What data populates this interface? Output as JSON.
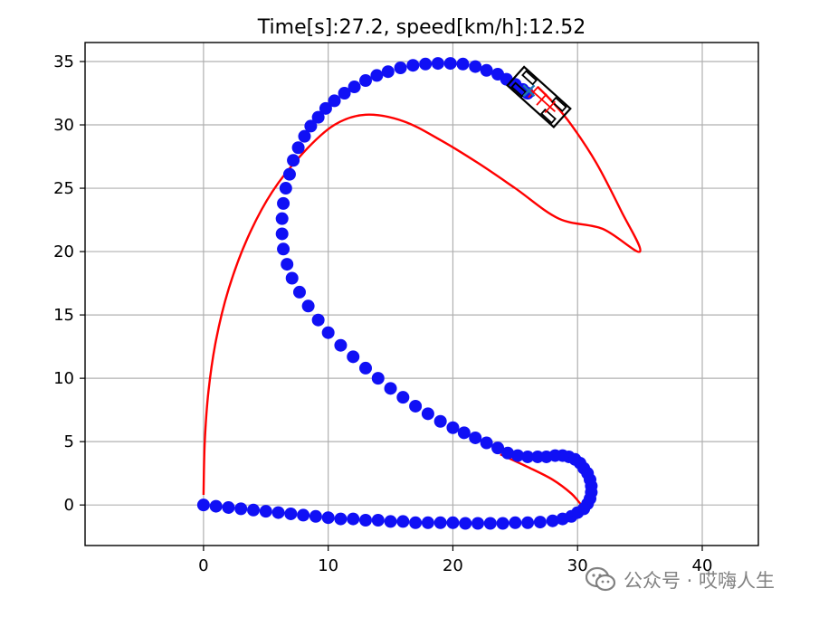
{
  "chart_data": {
    "type": "line",
    "title": "Time[s]:27.2, speed[km/h]:12.52",
    "xlabel": "",
    "ylabel": "",
    "xlim": [
      -9.5,
      44.5
    ],
    "ylim": [
      -3.2,
      36.5
    ],
    "xticks": [
      0,
      10,
      20,
      30,
      40
    ],
    "yticks": [
      0,
      5,
      10,
      15,
      20,
      25,
      30,
      35
    ],
    "grid": true,
    "colors": {
      "reference_course": "#ff0000",
      "tracked_points": "#1010f5",
      "vehicle_outline": "#000000",
      "vehicle_heading": "#ff0000",
      "target_point": "#1f77b4",
      "grid": "#b0b0b0"
    },
    "reference_course": {
      "x": [
        0.0,
        0.1,
        0.4,
        1.0,
        2.0,
        3.5,
        5.5,
        8.0,
        10.5,
        13.0,
        16.0,
        19.0,
        22.0,
        25.0,
        28.5,
        32.0,
        35.0,
        33.5,
        31.5,
        29.5,
        28.0,
        26.8
      ],
      "y": [
        0.8,
        5.0,
        9.0,
        13.0,
        17.0,
        21.0,
        24.7,
        27.8,
        30.0,
        30.8,
        30.3,
        28.8,
        27.0,
        25.0,
        22.6,
        21.8,
        20.0,
        23.2,
        27.0,
        30.0,
        31.8,
        33.0
      ]
    },
    "bottom_course": {
      "x": [
        23.8,
        26.0,
        28.0,
        29.5,
        30.3
      ],
      "y": [
        4.0,
        3.0,
        2.0,
        0.9,
        0.0
      ]
    },
    "tracked_points": {
      "x": [
        0.0,
        1.0,
        2.0,
        3.0,
        4.0,
        5.0,
        6.0,
        7.0,
        8.0,
        9.0,
        10.0,
        11.0,
        12.0,
        13.0,
        14.0,
        15.0,
        16.0,
        17.0,
        18.0,
        19.0,
        20.0,
        21.0,
        22.0,
        23.0,
        24.0,
        25.0,
        26.0,
        27.0,
        28.0,
        28.8,
        29.5,
        30.0,
        30.5,
        30.8,
        31.0,
        31.1,
        31.1,
        31.0,
        30.8,
        30.5,
        30.2,
        29.8,
        29.3,
        28.8,
        28.2,
        27.5,
        26.8,
        26.0,
        25.2,
        24.4,
        23.6,
        22.7,
        21.8,
        20.9,
        20.0,
        19.0,
        18.0,
        17.0,
        16.0,
        15.0,
        14.0,
        13.0,
        12.0,
        11.0,
        10.0,
        9.2,
        8.4,
        7.7,
        7.1,
        6.7,
        6.4,
        6.3,
        6.3,
        6.4,
        6.6,
        6.9,
        7.2,
        7.6,
        8.1,
        8.6,
        9.2,
        9.8,
        10.5,
        11.3,
        12.1,
        13.0,
        13.9,
        14.8,
        15.8,
        16.8,
        17.8,
        18.8,
        19.8,
        20.8,
        21.8,
        22.7,
        23.6,
        24.3,
        25.0,
        25.6,
        26.0
      ],
      "y": [
        0.0,
        -0.1,
        -0.2,
        -0.3,
        -0.4,
        -0.5,
        -0.6,
        -0.7,
        -0.8,
        -0.9,
        -1.0,
        -1.1,
        -1.1,
        -1.2,
        -1.2,
        -1.3,
        -1.3,
        -1.4,
        -1.4,
        -1.4,
        -1.4,
        -1.45,
        -1.45,
        -1.45,
        -1.45,
        -1.4,
        -1.4,
        -1.35,
        -1.25,
        -1.1,
        -0.9,
        -0.6,
        -0.3,
        0.1,
        0.5,
        1.0,
        1.5,
        2.0,
        2.5,
        2.9,
        3.3,
        3.6,
        3.8,
        3.9,
        3.9,
        3.8,
        3.8,
        3.8,
        3.9,
        4.1,
        4.5,
        4.9,
        5.3,
        5.7,
        6.1,
        6.6,
        7.2,
        7.8,
        8.5,
        9.2,
        10.0,
        10.8,
        11.7,
        12.6,
        13.6,
        14.6,
        15.7,
        16.8,
        17.9,
        19.0,
        20.2,
        21.4,
        22.6,
        23.8,
        25.0,
        26.1,
        27.2,
        28.2,
        29.1,
        29.9,
        30.6,
        31.3,
        31.9,
        32.5,
        33.0,
        33.5,
        33.9,
        34.2,
        34.5,
        34.7,
        34.8,
        34.85,
        34.85,
        34.8,
        34.6,
        34.3,
        34.0,
        33.6,
        33.2,
        32.8,
        32.5
      ]
    },
    "vehicle": {
      "center": [
        26.9,
        32.2
      ],
      "heading_deg": -42,
      "length_m": 5.0,
      "width_m": 2.0
    },
    "target_point": [
      26.1,
      32.7
    ]
  },
  "watermark": {
    "icon": "wechat-icon",
    "text": "公众号 · 哎嗨人生"
  }
}
